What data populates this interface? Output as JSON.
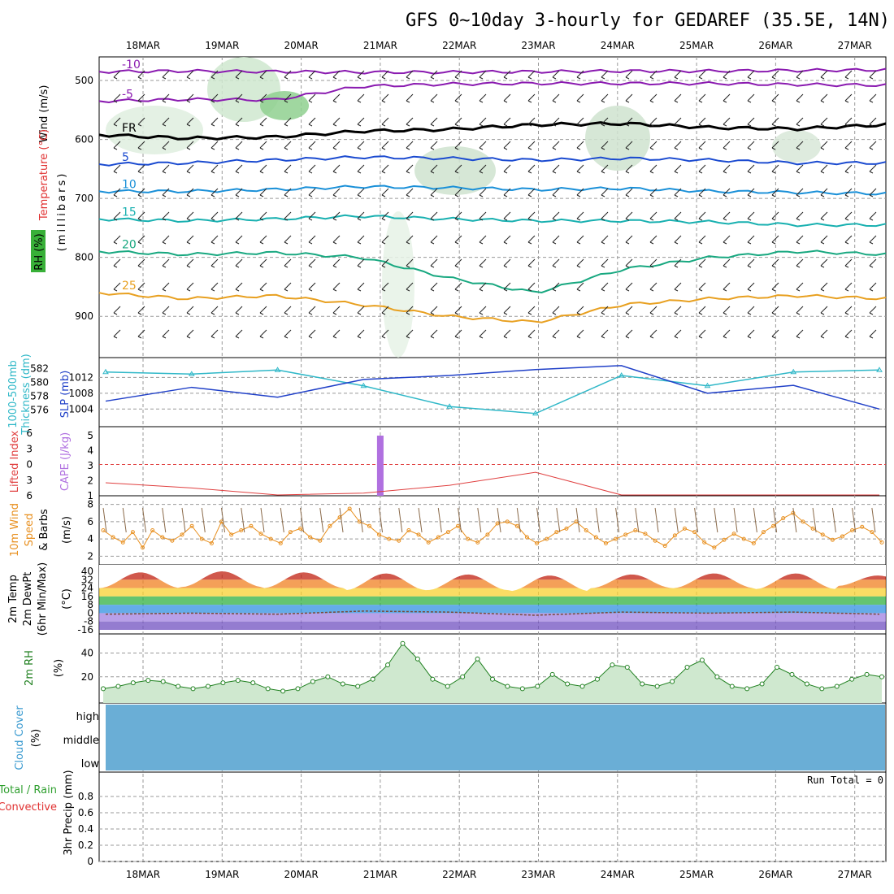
{
  "title": "GFS 0~10day 3-hourly for GEDAREF (35.5E, 14N)",
  "colors": {
    "temperature": "#e03030",
    "rh": "#38b038",
    "wind": "#111111",
    "thickness": "#30b8c8",
    "slp": "#2040c8",
    "cape": "#b070e0",
    "lifted": "#e04040",
    "wind10": "#e89020",
    "rh2m": "#208020",
    "cloud": "#6aaed6",
    "precip_total": "#30a030",
    "precip_conv": "#e03030"
  },
  "panels": {
    "upper": {
      "ylabel_wind": "Wind (m/s)",
      "ylabel_temp": "Temperature (°C)",
      "ylabel_rh": "RH (%)",
      "ylabel_mb": "(millibars)"
    },
    "thickness": {
      "ylabel_a": "1000-500mb",
      "ylabel_b": "Thickness (dm)",
      "ylabel_slp": "SLP (mb)"
    },
    "cape": {
      "ylabel_li": "Lifted Index",
      "ylabel_cape": "CAPE (J/kg)"
    },
    "wind10": {
      "ylabel_a": "10m Wind",
      "ylabel_b": "Speed",
      "ylabel_c": "& Barbs",
      "unit": "(m/s)"
    },
    "temp2m": {
      "ylabel_a": "2m Temp",
      "ylabel_b": "2m DewPt",
      "ylabel_c": "(6hr Min/Max)",
      "unit": "(°C)"
    },
    "rh2m": {
      "ylabel": "2m RH",
      "unit": "(%)"
    },
    "cloud": {
      "ylabel": "Cloud Cover",
      "unit": "(%)",
      "levels": [
        "high",
        "middle",
        "low"
      ]
    },
    "precip": {
      "ylabel_a": "Total / Rain",
      "ylabel_b": "Convective",
      "ylabel_c": "3hr Precip (mm)",
      "run_total": "Run Total = 0"
    }
  },
  "chart_data": [
    {
      "type": "heatmap",
      "name": "upper-air cross section",
      "x": [
        "18MAR",
        "19MAR",
        "20MAR",
        "21MAR",
        "22MAR",
        "23MAR",
        "24MAR",
        "25MAR",
        "26MAR",
        "27MAR"
      ],
      "ylabel": "(millibars)",
      "yticks": [
        500,
        600,
        700,
        800,
        900
      ],
      "ylim": [
        460,
        970
      ],
      "isotherm_labels": [
        "-10",
        "-5",
        "FR",
        "5",
        "10",
        "15",
        "20",
        "25"
      ],
      "isotherms": [
        {
          "label": "-10",
          "color": "#8a1ab0",
          "p": [
            485,
            484,
            485,
            486,
            486,
            485,
            484,
            484,
            483,
            482
          ]
        },
        {
          "label": "-5",
          "color": "#8a1ab0",
          "p": [
            535,
            532,
            533,
            510,
            506,
            505,
            505,
            505,
            507,
            508
          ]
        },
        {
          "label": "FR",
          "color": "#000000",
          "p": [
            592,
            598,
            596,
            586,
            583,
            575,
            573,
            580,
            582,
            575
          ]
        },
        {
          "label": "5",
          "color": "#1a4ad0",
          "p": [
            642,
            640,
            635,
            630,
            632,
            635,
            632,
            635,
            640,
            640
          ]
        },
        {
          "label": "10",
          "color": "#1a90d8",
          "p": [
            688,
            688,
            685,
            680,
            682,
            685,
            683,
            688,
            690,
            692
          ]
        },
        {
          "label": "15",
          "color": "#18b0b0",
          "p": [
            735,
            738,
            735,
            730,
            735,
            738,
            738,
            740,
            745,
            745
          ]
        },
        {
          "label": "20",
          "color": "#18a880",
          "p": [
            790,
            795,
            792,
            800,
            835,
            860,
            820,
            800,
            790,
            795
          ]
        },
        {
          "label": "25",
          "color": "#e8a020",
          "p": [
            860,
            870,
            865,
            880,
            900,
            910,
            880,
            870,
            865,
            870
          ]
        }
      ]
    },
    {
      "type": "line",
      "name": "thickness and SLP",
      "x": [
        "18MAR",
        "19MAR",
        "20MAR",
        "21MAR",
        "22MAR",
        "23MAR",
        "24MAR",
        "25MAR",
        "26MAR",
        "27MAR"
      ],
      "y1ticks": [
        576,
        578,
        580,
        582
      ],
      "y2ticks": [
        1004,
        1008,
        1012
      ],
      "series": [
        {
          "name": "Thickness",
          "axis": "left",
          "values": [
            581.5,
            581.2,
            581.8,
            579.5,
            576.5,
            575.5,
            581.0,
            579.5,
            581.5,
            581.8
          ]
        },
        {
          "name": "SLP",
          "axis": "right",
          "values": [
            1006,
            1009.5,
            1007,
            1011.5,
            1012.5,
            1014,
            1015,
            1008,
            1010,
            1004
          ]
        }
      ]
    },
    {
      "type": "bar",
      "name": "CAPE and Lifted Index",
      "li_ticks": [
        -6,
        -3,
        0,
        3,
        6
      ],
      "cape_ticks": [
        1,
        2,
        3,
        4,
        5
      ],
      "cape_bar": {
        "x": "21MAR",
        "value": 5
      },
      "lifted_index": [
        3.5,
        4.5,
        6,
        5.5,
        4.0,
        1.5,
        6,
        6,
        6,
        6
      ]
    },
    {
      "type": "line",
      "name": "10m wind speed",
      "yticks": [
        2,
        4,
        6,
        8
      ],
      "ylim": [
        1,
        9
      ],
      "values": [
        5,
        4.2,
        3.6,
        4.8,
        3.0,
        5.0,
        4.2,
        3.8,
        4.5,
        5.5,
        4.0,
        3.5,
        6.0,
        4.5,
        5.0,
        5.5,
        4.6,
        4.0,
        3.5,
        4.8,
        5.2,
        4.2,
        3.8,
        5.5,
        6.5,
        7.5,
        6.0,
        5.5,
        4.5,
        4.0,
        3.8,
        5.0,
        4.5,
        3.6,
        4.2,
        4.8,
        5.5,
        4.0,
        3.6,
        4.5,
        5.8,
        6.0,
        5.5,
        4.2,
        3.5,
        4.0,
        4.8,
        5.2,
        6.0,
        5.0,
        4.2,
        3.5,
        4.0,
        4.5,
        5.0,
        4.6,
        3.8,
        3.2,
        4.4,
        5.2,
        4.8,
        3.6,
        3.0,
        3.9,
        4.6,
        4.0,
        3.5,
        4.8,
        5.5,
        6.4,
        7.0,
        6.0,
        5.2,
        4.5,
        3.9,
        4.3,
        5.0,
        5.4,
        4.8,
        3.6
      ]
    },
    {
      "type": "area",
      "name": "2m temperature and dewpoint",
      "yticks": [
        -16,
        -8,
        0,
        8,
        16,
        24,
        32,
        40
      ],
      "temp_max": [
        39,
        40,
        39,
        38,
        37,
        36,
        37,
        38,
        38,
        36
      ],
      "temp_min": [
        24,
        25,
        24,
        22,
        22,
        21,
        24,
        24,
        23,
        26
      ],
      "dewpt": [
        -1,
        0,
        -1,
        2,
        1,
        -2,
        1,
        0,
        1,
        -1
      ]
    },
    {
      "type": "area",
      "name": "2m relative humidity",
      "yticks": [
        20,
        40
      ],
      "values": [
        10,
        12,
        15,
        17,
        16,
        12,
        10,
        12,
        15,
        17,
        15,
        10,
        8,
        10,
        16,
        20,
        14,
        12,
        18,
        30,
        48,
        35,
        18,
        12,
        20,
        35,
        18,
        12,
        10,
        12,
        22,
        14,
        12,
        18,
        30,
        28,
        14,
        12,
        16,
        28,
        34,
        20,
        12,
        10,
        14,
        28,
        22,
        14,
        10,
        12,
        18,
        22,
        20
      ]
    },
    {
      "type": "bar",
      "name": "cloud cover",
      "levels": [
        "high",
        "middle",
        "low"
      ]
    },
    {
      "type": "bar",
      "name": "3hr precip",
      "yticks": [
        0,
        0.2,
        0.4,
        0.6,
        0.8
      ],
      "ylim": [
        0,
        1
      ],
      "run_total": 0
    }
  ]
}
